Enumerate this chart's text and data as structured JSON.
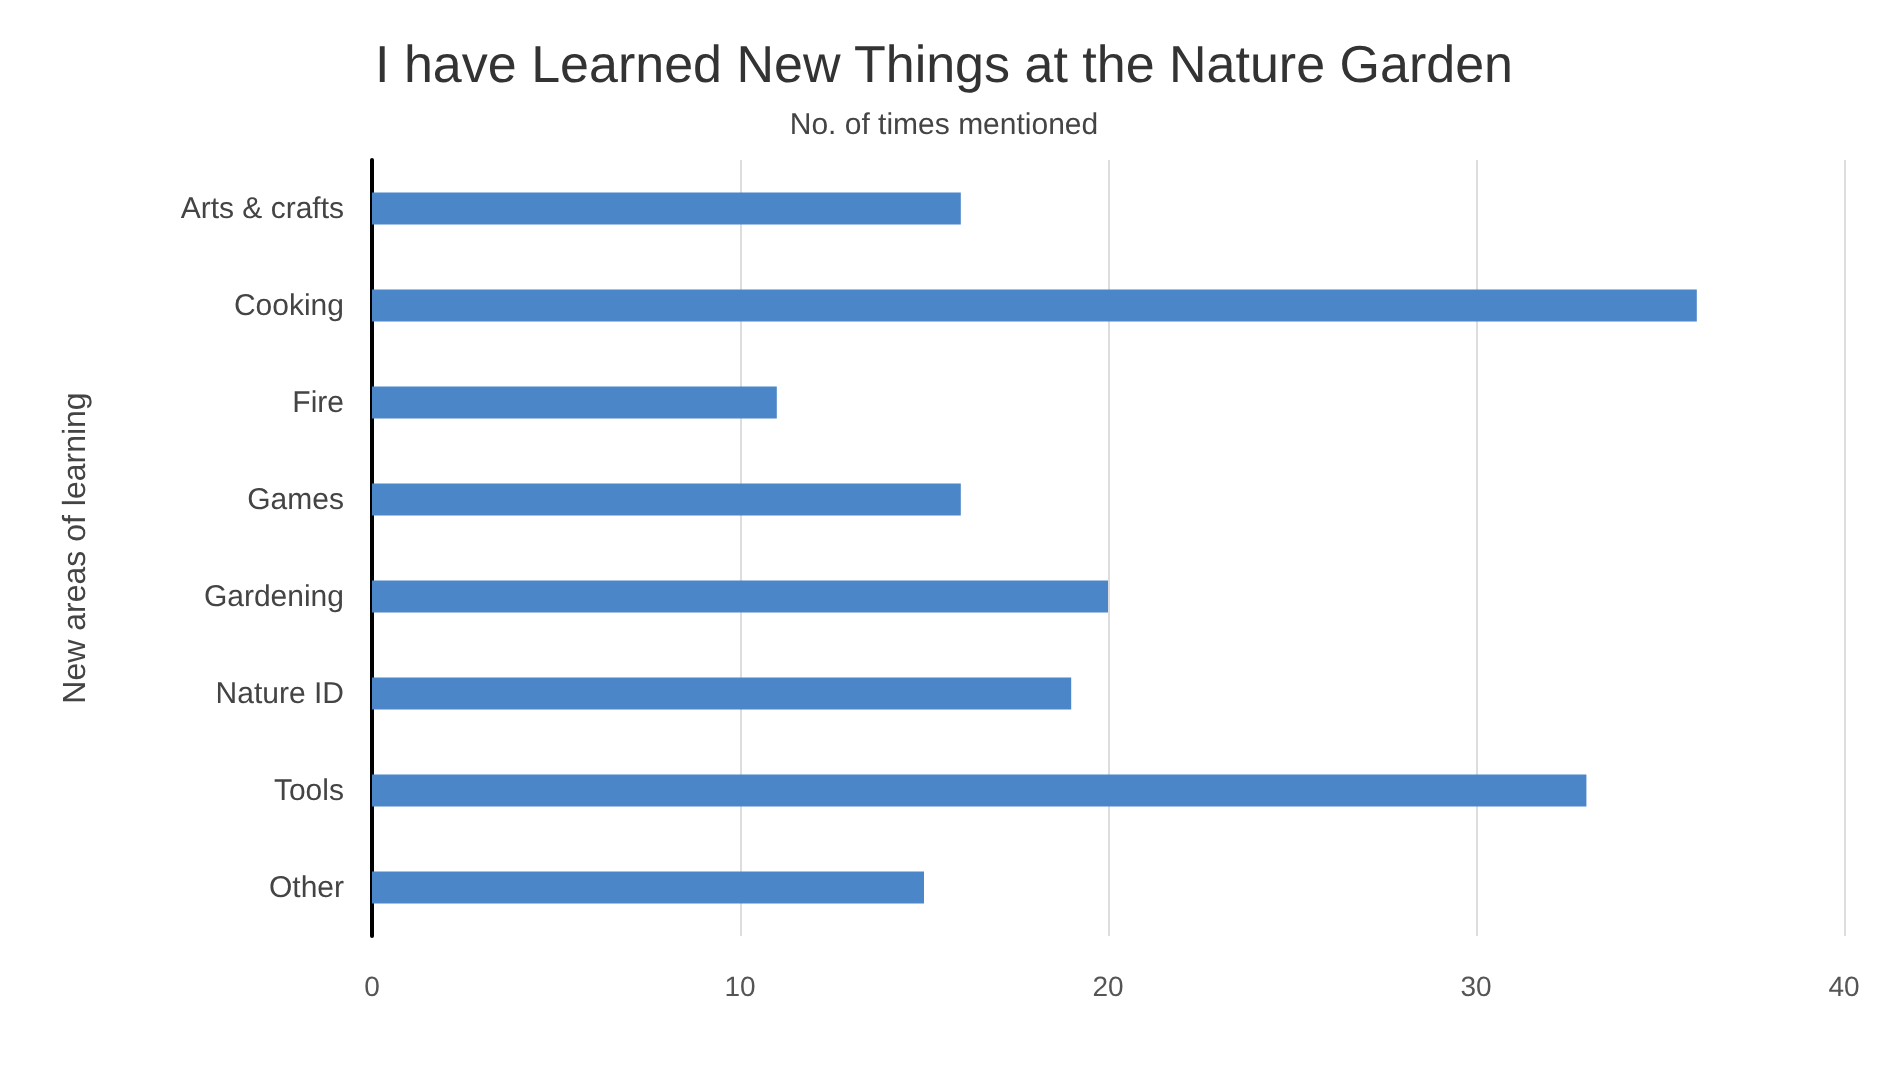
{
  "chart_data": {
    "type": "bar",
    "orientation": "horizontal",
    "title": "I have Learned New Things at the Nature Garden",
    "xlabel": "No. of times mentioned",
    "ylabel": "New areas of learning",
    "categories": [
      "Arts & crafts",
      "Cooking",
      "Fire",
      "Games",
      "Gardening",
      "Nature ID",
      "Tools",
      "Other"
    ],
    "values": [
      16,
      36,
      11,
      16,
      20,
      19,
      33,
      15
    ],
    "color": "#4a86c8",
    "xlim": [
      0,
      40
    ],
    "xticks": [
      0,
      10,
      20,
      30,
      40
    ],
    "grid": "x"
  }
}
